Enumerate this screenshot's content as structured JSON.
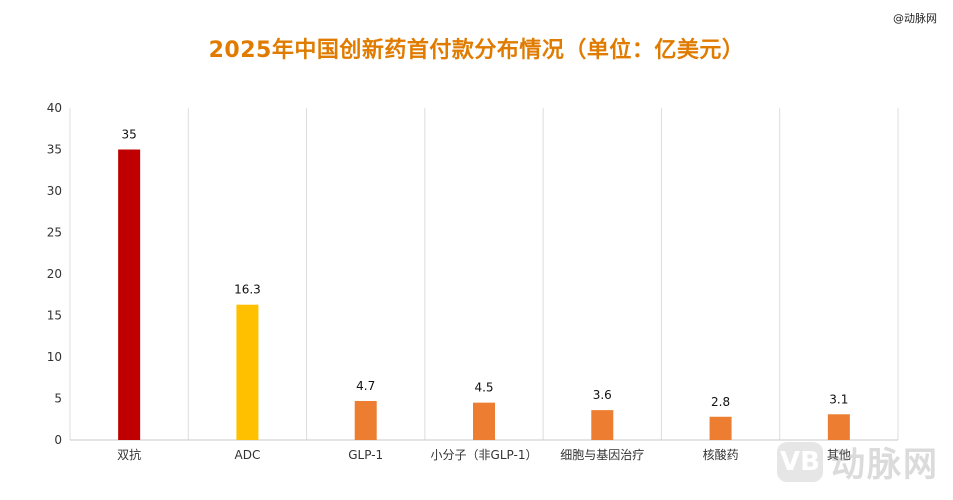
{
  "source_tag": "@动脉网",
  "watermark": {
    "logo": "VB",
    "text": "动脉网"
  },
  "colors": {
    "title": "#e07b00",
    "axis_text": "#333333",
    "grid": "#dddddd"
  },
  "chart_data": {
    "type": "bar",
    "title": "2025年中国创新药首付款分布情况（单位：亿美元）",
    "xlabel": "",
    "ylabel": "",
    "ylim": [
      0,
      40
    ],
    "yticks": [
      0,
      5,
      10,
      15,
      20,
      25,
      30,
      35,
      40
    ],
    "grid": "vertical category separators",
    "legend": "none",
    "categories": [
      "双抗",
      "ADC",
      "GLP-1",
      "小分子（非GLP-1）",
      "细胞与基因治疗",
      "核酸药",
      "其他"
    ],
    "values": [
      35,
      16.3,
      4.7,
      4.5,
      3.6,
      2.8,
      3.1
    ],
    "data_labels": [
      "35",
      "16.3",
      "4.7",
      "4.5",
      "3.6",
      "2.8",
      "3.1"
    ],
    "bar_colors": [
      "#c00000",
      "#ffc000",
      "#ed7d31",
      "#ed7d31",
      "#ed7d31",
      "#ed7d31",
      "#ed7d31"
    ]
  }
}
